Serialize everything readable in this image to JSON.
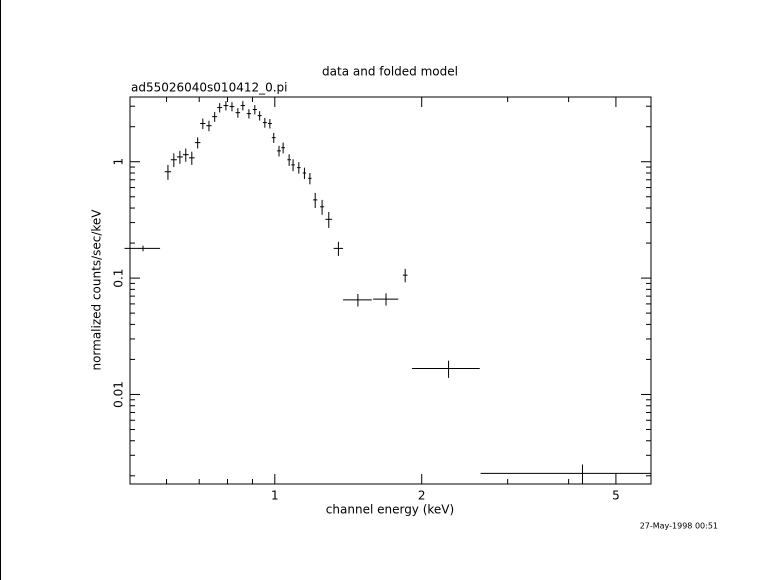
{
  "chart_data": {
    "type": "errorbar",
    "title": "data and folded model",
    "subtitle": "ad55026040s010412_0.pi",
    "xlabel": "channel energy (keV)",
    "ylabel": "normalized counts/sec/keV",
    "annotation": "27-May-1998 00:51",
    "xscale": "log",
    "yscale": "log",
    "xlim": [
      0.505,
      5.9
    ],
    "ylim": [
      0.0017,
      3.6
    ],
    "xticks": [
      1,
      2,
      5
    ],
    "yticks": [
      0.01,
      0.1,
      1
    ],
    "xminorticks": [
      0.6,
      0.7,
      0.8,
      0.9,
      3,
      4
    ],
    "yminorticks": [
      0.002,
      0.003,
      0.004,
      0.005,
      0.006,
      0.007,
      0.008,
      0.009,
      0.02,
      0.03,
      0.04,
      0.05,
      0.06,
      0.07,
      0.08,
      0.09,
      0.2,
      0.3,
      0.4,
      0.5,
      0.6,
      0.7,
      0.8,
      0.9,
      2,
      3
    ],
    "color": "#000000",
    "x": [
      0.537,
      0.604,
      0.621,
      0.639,
      0.657,
      0.676,
      0.695,
      0.712,
      0.733,
      0.753,
      0.771,
      0.794,
      0.817,
      0.84,
      0.86,
      0.885,
      0.91,
      0.931,
      0.954,
      0.977,
      0.995,
      1.02,
      1.04,
      1.07,
      1.09,
      1.12,
      1.15,
      1.18,
      1.21,
      1.25,
      1.29,
      1.35,
      1.48,
      1.69,
      1.85,
      2.27,
      4.27
    ],
    "xerr": [
      0.045,
      0.009,
      0.009,
      0.009,
      0.009,
      0.009,
      0.009,
      0.009,
      0.009,
      0.009,
      0.009,
      0.009,
      0.009,
      0.009,
      0.009,
      0.009,
      0.009,
      0.009,
      0.009,
      0.009,
      0.009,
      0.009,
      0.009,
      0.009,
      0.009,
      0.009,
      0.009,
      0.009,
      0.012,
      0.012,
      0.02,
      0.03,
      0.1,
      0.1,
      0.02,
      0.36,
      1.63
    ],
    "y": [
      0.18,
      0.82,
      1.04,
      1.1,
      1.15,
      1.08,
      1.46,
      2.13,
      2.04,
      2.44,
      2.92,
      3.04,
      2.98,
      2.64,
      3.04,
      2.59,
      2.81,
      2.49,
      2.17,
      2.13,
      1.61,
      1.24,
      1.32,
      1.04,
      0.94,
      0.89,
      0.8,
      0.72,
      0.47,
      0.41,
      0.32,
      0.18,
      0.065,
      0.066,
      0.106,
      0.0167,
      0.0021
    ],
    "yerr": [
      0.01,
      0.12,
      0.14,
      0.14,
      0.15,
      0.14,
      0.16,
      0.22,
      0.21,
      0.24,
      0.27,
      0.28,
      0.27,
      0.25,
      0.28,
      0.24,
      0.26,
      0.23,
      0.21,
      0.2,
      0.16,
      0.13,
      0.14,
      0.12,
      0.11,
      0.1,
      0.09,
      0.08,
      0.07,
      0.06,
      0.05,
      0.025,
      0.008,
      0.008,
      0.014,
      0.0028,
      0.0004
    ]
  }
}
